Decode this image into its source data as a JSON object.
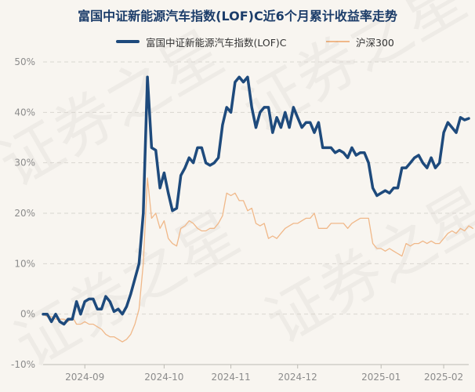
{
  "chart_data": {
    "type": "line",
    "title": "富国中证新能源汽车指数(LOF)C近6个月累计收益率走势",
    "xlabel": "",
    "ylabel": "",
    "ylim": [
      -10,
      50
    ],
    "yticks": [
      -10,
      0,
      10,
      20,
      30,
      40,
      50
    ],
    "y_unit": "%",
    "x_tick_labels": [
      "2024-09",
      "2024-10",
      "2024-11",
      "2024-12",
      "2025-01",
      "2025-02"
    ],
    "x_tick_indices": [
      10,
      29,
      45,
      61,
      81,
      96
    ],
    "grid": true,
    "legend_position": "top-center",
    "series": [
      {
        "name": "富国中证新能源汽车指数(LOF)C",
        "color": "#1e4a7c",
        "values": [
          0,
          0,
          -1.5,
          0,
          -1.5,
          -2,
          -1,
          -1,
          2.5,
          0,
          2.5,
          3,
          3,
          1,
          1,
          3.5,
          2.5,
          0.5,
          1,
          0,
          1.5,
          4,
          7,
          10,
          20,
          47,
          33,
          32.5,
          25,
          28,
          24,
          20.5,
          21,
          27.5,
          29,
          31,
          30,
          33,
          33,
          30,
          29.5,
          30,
          31,
          37.5,
          41,
          40,
          46,
          47,
          46,
          47,
          41,
          37,
          40,
          41,
          41,
          36,
          39,
          37,
          40,
          37,
          41,
          39,
          37,
          38,
          38,
          36,
          38,
          33,
          33,
          33,
          32,
          32.5,
          32,
          31,
          33,
          31.5,
          32,
          32,
          30,
          25,
          23.5,
          24,
          24.5,
          24,
          25,
          25,
          29,
          29,
          30,
          31,
          31.5,
          30,
          29,
          31,
          29,
          30,
          36,
          38,
          37,
          36,
          39,
          38.5,
          38.8
        ]
      },
      {
        "name": "沪深300",
        "color": "#f0b889",
        "values": [
          0,
          -0.5,
          -0.5,
          -1,
          -1,
          -1,
          -1.5,
          -0.5,
          -2,
          -2,
          -1.5,
          -2,
          -2,
          -2.5,
          -3,
          -4,
          -4.5,
          -4.5,
          -5,
          -5.5,
          -5,
          -4,
          -2,
          1,
          10,
          27,
          19,
          20,
          17,
          18.5,
          15,
          14,
          13.5,
          17,
          17.5,
          18.5,
          18,
          17,
          16.5,
          16.5,
          17,
          17,
          18,
          19.5,
          24,
          23.5,
          24,
          22.5,
          22.5,
          20.5,
          21,
          18,
          17.5,
          18,
          15,
          15.5,
          15,
          16,
          17,
          17.5,
          18,
          18,
          18.5,
          19,
          19,
          20,
          17,
          17,
          17,
          18,
          18,
          18,
          18,
          17,
          18,
          18.5,
          19,
          19,
          19,
          14,
          13,
          13,
          12.5,
          13,
          12.5,
          12,
          11.5,
          14,
          13.5,
          14,
          14,
          14.5,
          14,
          14.5,
          14,
          14,
          15,
          16,
          16.5,
          16,
          17,
          16.5,
          17.5,
          17
        ]
      }
    ]
  },
  "watermark": "证券之星"
}
